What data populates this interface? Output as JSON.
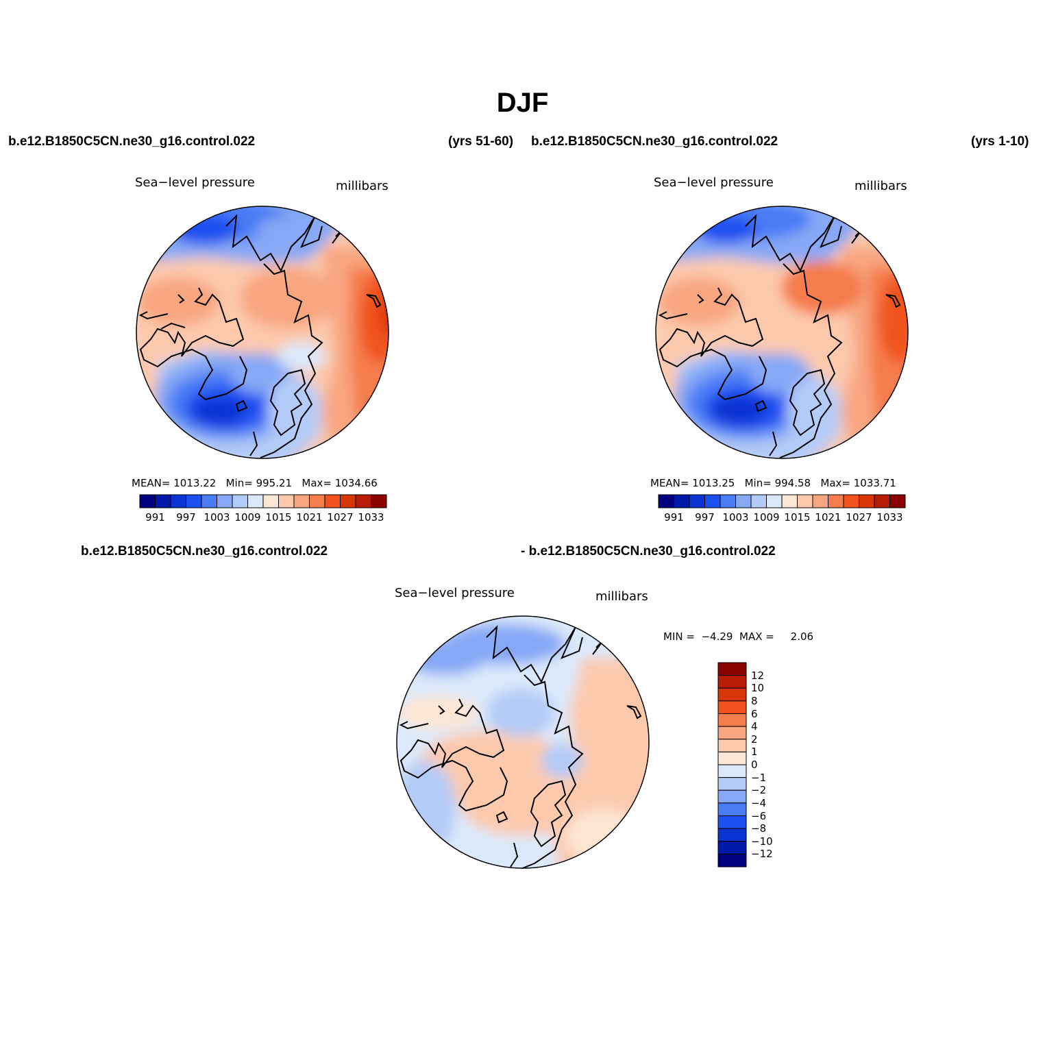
{
  "title": "DJF",
  "panels": [
    {
      "case_left": "b.e12.B1850C5CN.ne30_g16.control.022",
      "years": "(yrs 51-60)",
      "field": "Sea−level pressure",
      "units": "millibars",
      "mean_label": "MEAN=",
      "mean": "1013.22",
      "min_label": "Min=",
      "min": "995.21",
      "max_label": "Max=",
      "max": "1034.66"
    },
    {
      "case_left": "b.e12.B1850C5CN.ne30_g16.control.022",
      "years": "(yrs 1-10)",
      "field": "Sea−level pressure",
      "units": "millibars",
      "mean_label": "MEAN=",
      "mean": "1013.25",
      "min_label": "Min=",
      "min": "994.58",
      "max_label": "Max=",
      "max": "1033.71"
    }
  ],
  "difference": {
    "case_left": "b.e12.B1850C5CN.ne30_g16.control.022",
    "case_right": "- b.e12.B1850C5CN.ne30_g16.control.022",
    "field": "Sea−level pressure",
    "units": "millibars",
    "min_label": "MIN =",
    "min": "−4.29",
    "max_label": "MAX =",
    "max": "2.06"
  },
  "abs_colorbar": {
    "colors": [
      "#000080",
      "#0019a8",
      "#0a33d1",
      "#1a4ff0",
      "#4a7cf5",
      "#86a8f5",
      "#b3cbf7",
      "#dbe9fb",
      "#fde6d4",
      "#fcc9ad",
      "#f8a680",
      "#f57c4c",
      "#f0531d",
      "#d93608",
      "#b81c06",
      "#8b0000"
    ],
    "labels": [
      "991",
      "997",
      "1003",
      "1009",
      "1015",
      "1021",
      "1027",
      "1033"
    ]
  },
  "diff_colorbar": {
    "colors": [
      "#8b0000",
      "#b81c06",
      "#d93608",
      "#f0531d",
      "#f57c4c",
      "#f8a680",
      "#fcc9ad",
      "#fde6d4",
      "#dbe9fb",
      "#b3cbf7",
      "#86a8f5",
      "#4a7cf5",
      "#1a4ff0",
      "#0a33d1",
      "#0019a8",
      "#000080"
    ],
    "labels": [
      "12",
      "10",
      "8",
      "6",
      "4",
      "2",
      "1",
      "0",
      "−1",
      "−2",
      "−4",
      "−6",
      "−8",
      "−10",
      "−12"
    ]
  }
}
